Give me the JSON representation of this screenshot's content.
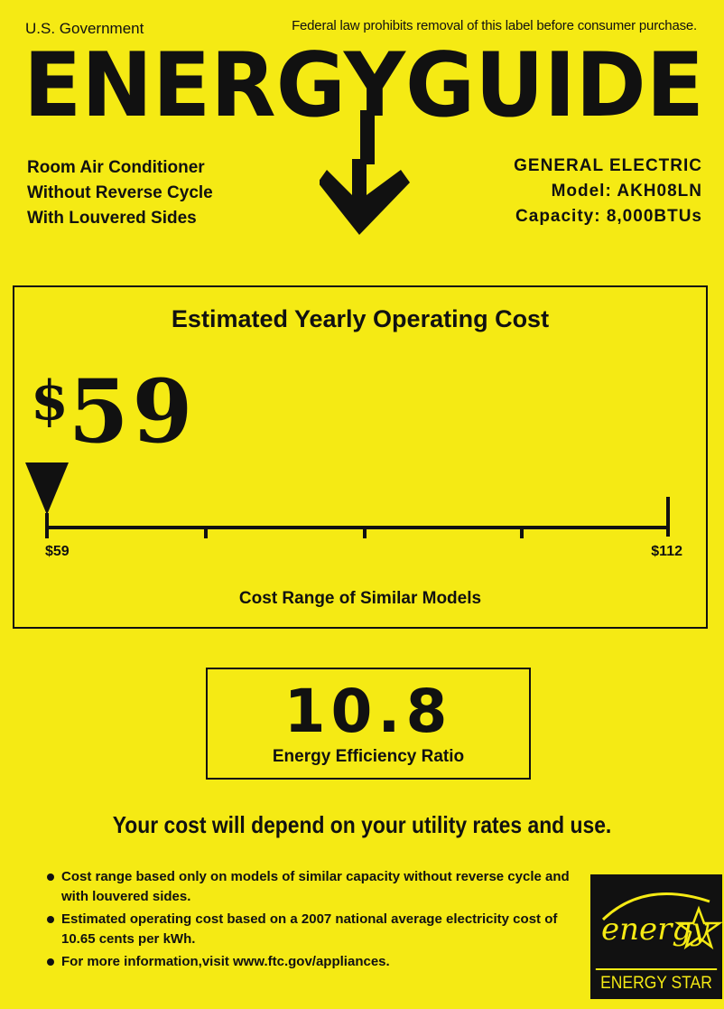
{
  "header": {
    "gov": "U.S. Government",
    "notice": "Federal law prohibits removal of this label before consumer purchase."
  },
  "title": "ENERGYGUIDE",
  "product": {
    "lines": [
      "Room Air Conditioner",
      "Without Reverse Cycle",
      "With Louvered Sides"
    ]
  },
  "manufacturer": {
    "name": "GENERAL ELECTRIC",
    "model": "Model: AKH08LN",
    "capacity": "Capacity: 8,000BTUs"
  },
  "cost": {
    "heading": "Estimated Yearly Operating Cost",
    "dollar_sign": "$",
    "amount": "59",
    "value": 59,
    "range_min": 59,
    "range_max": 112,
    "range_min_label": "$59",
    "range_max_label": "$112",
    "range_caption": "Cost Range of Similar Models"
  },
  "eer": {
    "value": "10.8",
    "label": "Energy Efficiency Ratio"
  },
  "note": "Your cost will depend on your utility rates and use.",
  "bullets": [
    "Cost range based only on models of similar capacity without reverse cycle and with louvered sides.",
    "Estimated operating cost based on a 2007 national average electricity cost of 10.65 cents per kWh.",
    "For more information,visit www.ftc.gov/appliances."
  ],
  "energy_star": {
    "script": "energy",
    "caption": "ENERGY STAR"
  },
  "colors": {
    "background": "#f5ea14",
    "ink": "#111111"
  },
  "icons": [
    "down-arrow-icon",
    "pointer-triangle-icon",
    "energy-star-logo-icon"
  ]
}
